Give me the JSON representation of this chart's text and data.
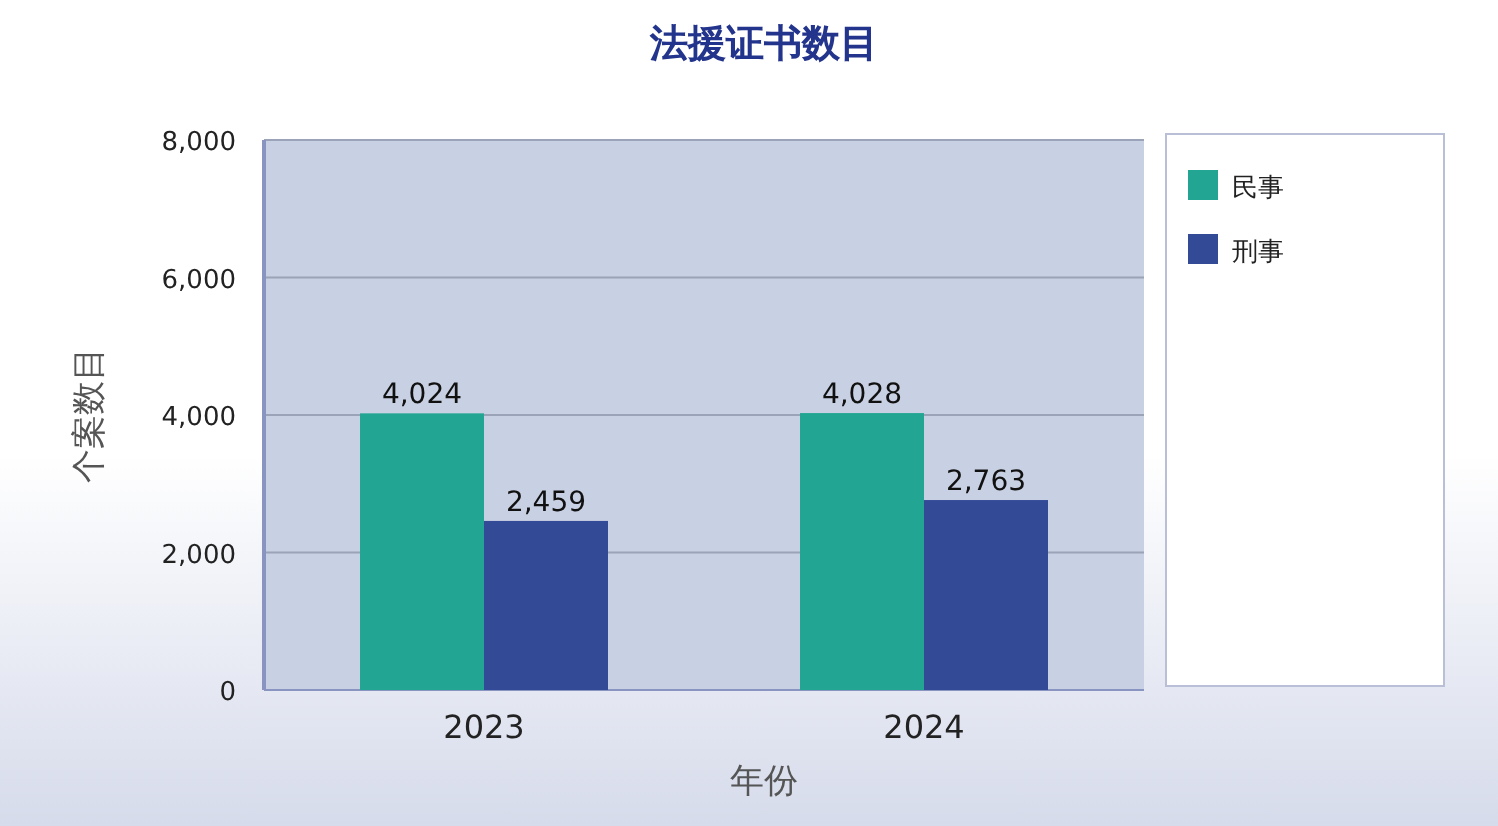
{
  "chart_data": {
    "type": "bar",
    "title": "法援证书数目",
    "xlabel": "年份",
    "ylabel": "个案数目",
    "categories": [
      "2023",
      "2024"
    ],
    "series": [
      {
        "name": "民事",
        "color": "#23a593",
        "values": [
          4024,
          4028
        ],
        "value_labels": [
          "4,024",
          "4,028"
        ]
      },
      {
        "name": "刑事",
        "color": "#334a97",
        "values": [
          2459,
          2763
        ],
        "value_labels": [
          "2,459",
          "2,763"
        ]
      }
    ],
    "ylim": [
      0,
      8000
    ],
    "yticks": [
      {
        "value": 0,
        "label": "0"
      },
      {
        "value": 2000,
        "label": "2,000"
      },
      {
        "value": 4000,
        "label": "4,000"
      },
      {
        "value": 6000,
        "label": "6,000"
      },
      {
        "value": 8000,
        "label": "8,000"
      }
    ],
    "grid": "y",
    "legend": "right"
  }
}
